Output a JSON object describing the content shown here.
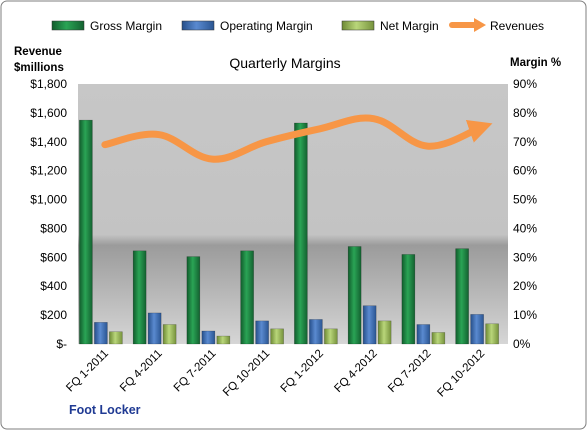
{
  "chart_data": {
    "type": "bar",
    "title": "Quarterly Margins",
    "company": "Foot Locker",
    "left_axis_label": [
      "Revenue",
      "$millions"
    ],
    "right_axis_label": "Margin %",
    "categories": [
      "FQ 1-2011",
      "FQ 4-2011",
      "FQ 7-2011",
      "FQ 10-2011",
      "FQ 1-2012",
      "FQ 4-2012",
      "FQ 7-2012",
      "FQ 10-2012"
    ],
    "left_axis": {
      "min": 0,
      "max": 1800,
      "step": 200,
      "tick_labels": [
        "$-",
        "$200",
        "$400",
        "$600",
        "$800",
        "$1,000",
        "$1,200",
        "$1,400",
        "$1,600",
        "$1,800"
      ]
    },
    "right_axis": {
      "min": 0,
      "max": 90,
      "step": 10,
      "tick_labels": [
        "0%",
        "10%",
        "20%",
        "30%",
        "40%",
        "50%",
        "60%",
        "70%",
        "80%",
        "90%"
      ]
    },
    "series": [
      {
        "name": "Gross Margin",
        "type": "bar",
        "axis": "left",
        "color": "#1e8a45",
        "values": [
          1550,
          645,
          605,
          645,
          1530,
          675,
          620,
          660
        ]
      },
      {
        "name": "Operating Margin",
        "type": "bar",
        "axis": "left",
        "color": "#3a6db5",
        "values": [
          150,
          215,
          90,
          160,
          170,
          265,
          135,
          205
        ]
      },
      {
        "name": "Net Margin",
        "type": "bar",
        "axis": "left",
        "color": "#9bbb59",
        "values": [
          85,
          135,
          55,
          105,
          105,
          160,
          80,
          140
        ]
      },
      {
        "name": "Revenues",
        "type": "line",
        "axis": "right",
        "color": "#f79646",
        "values": [
          69,
          72.5,
          64,
          70,
          74.5,
          78,
          68.5,
          75
        ]
      }
    ],
    "legend_position": "top",
    "grid": false
  }
}
